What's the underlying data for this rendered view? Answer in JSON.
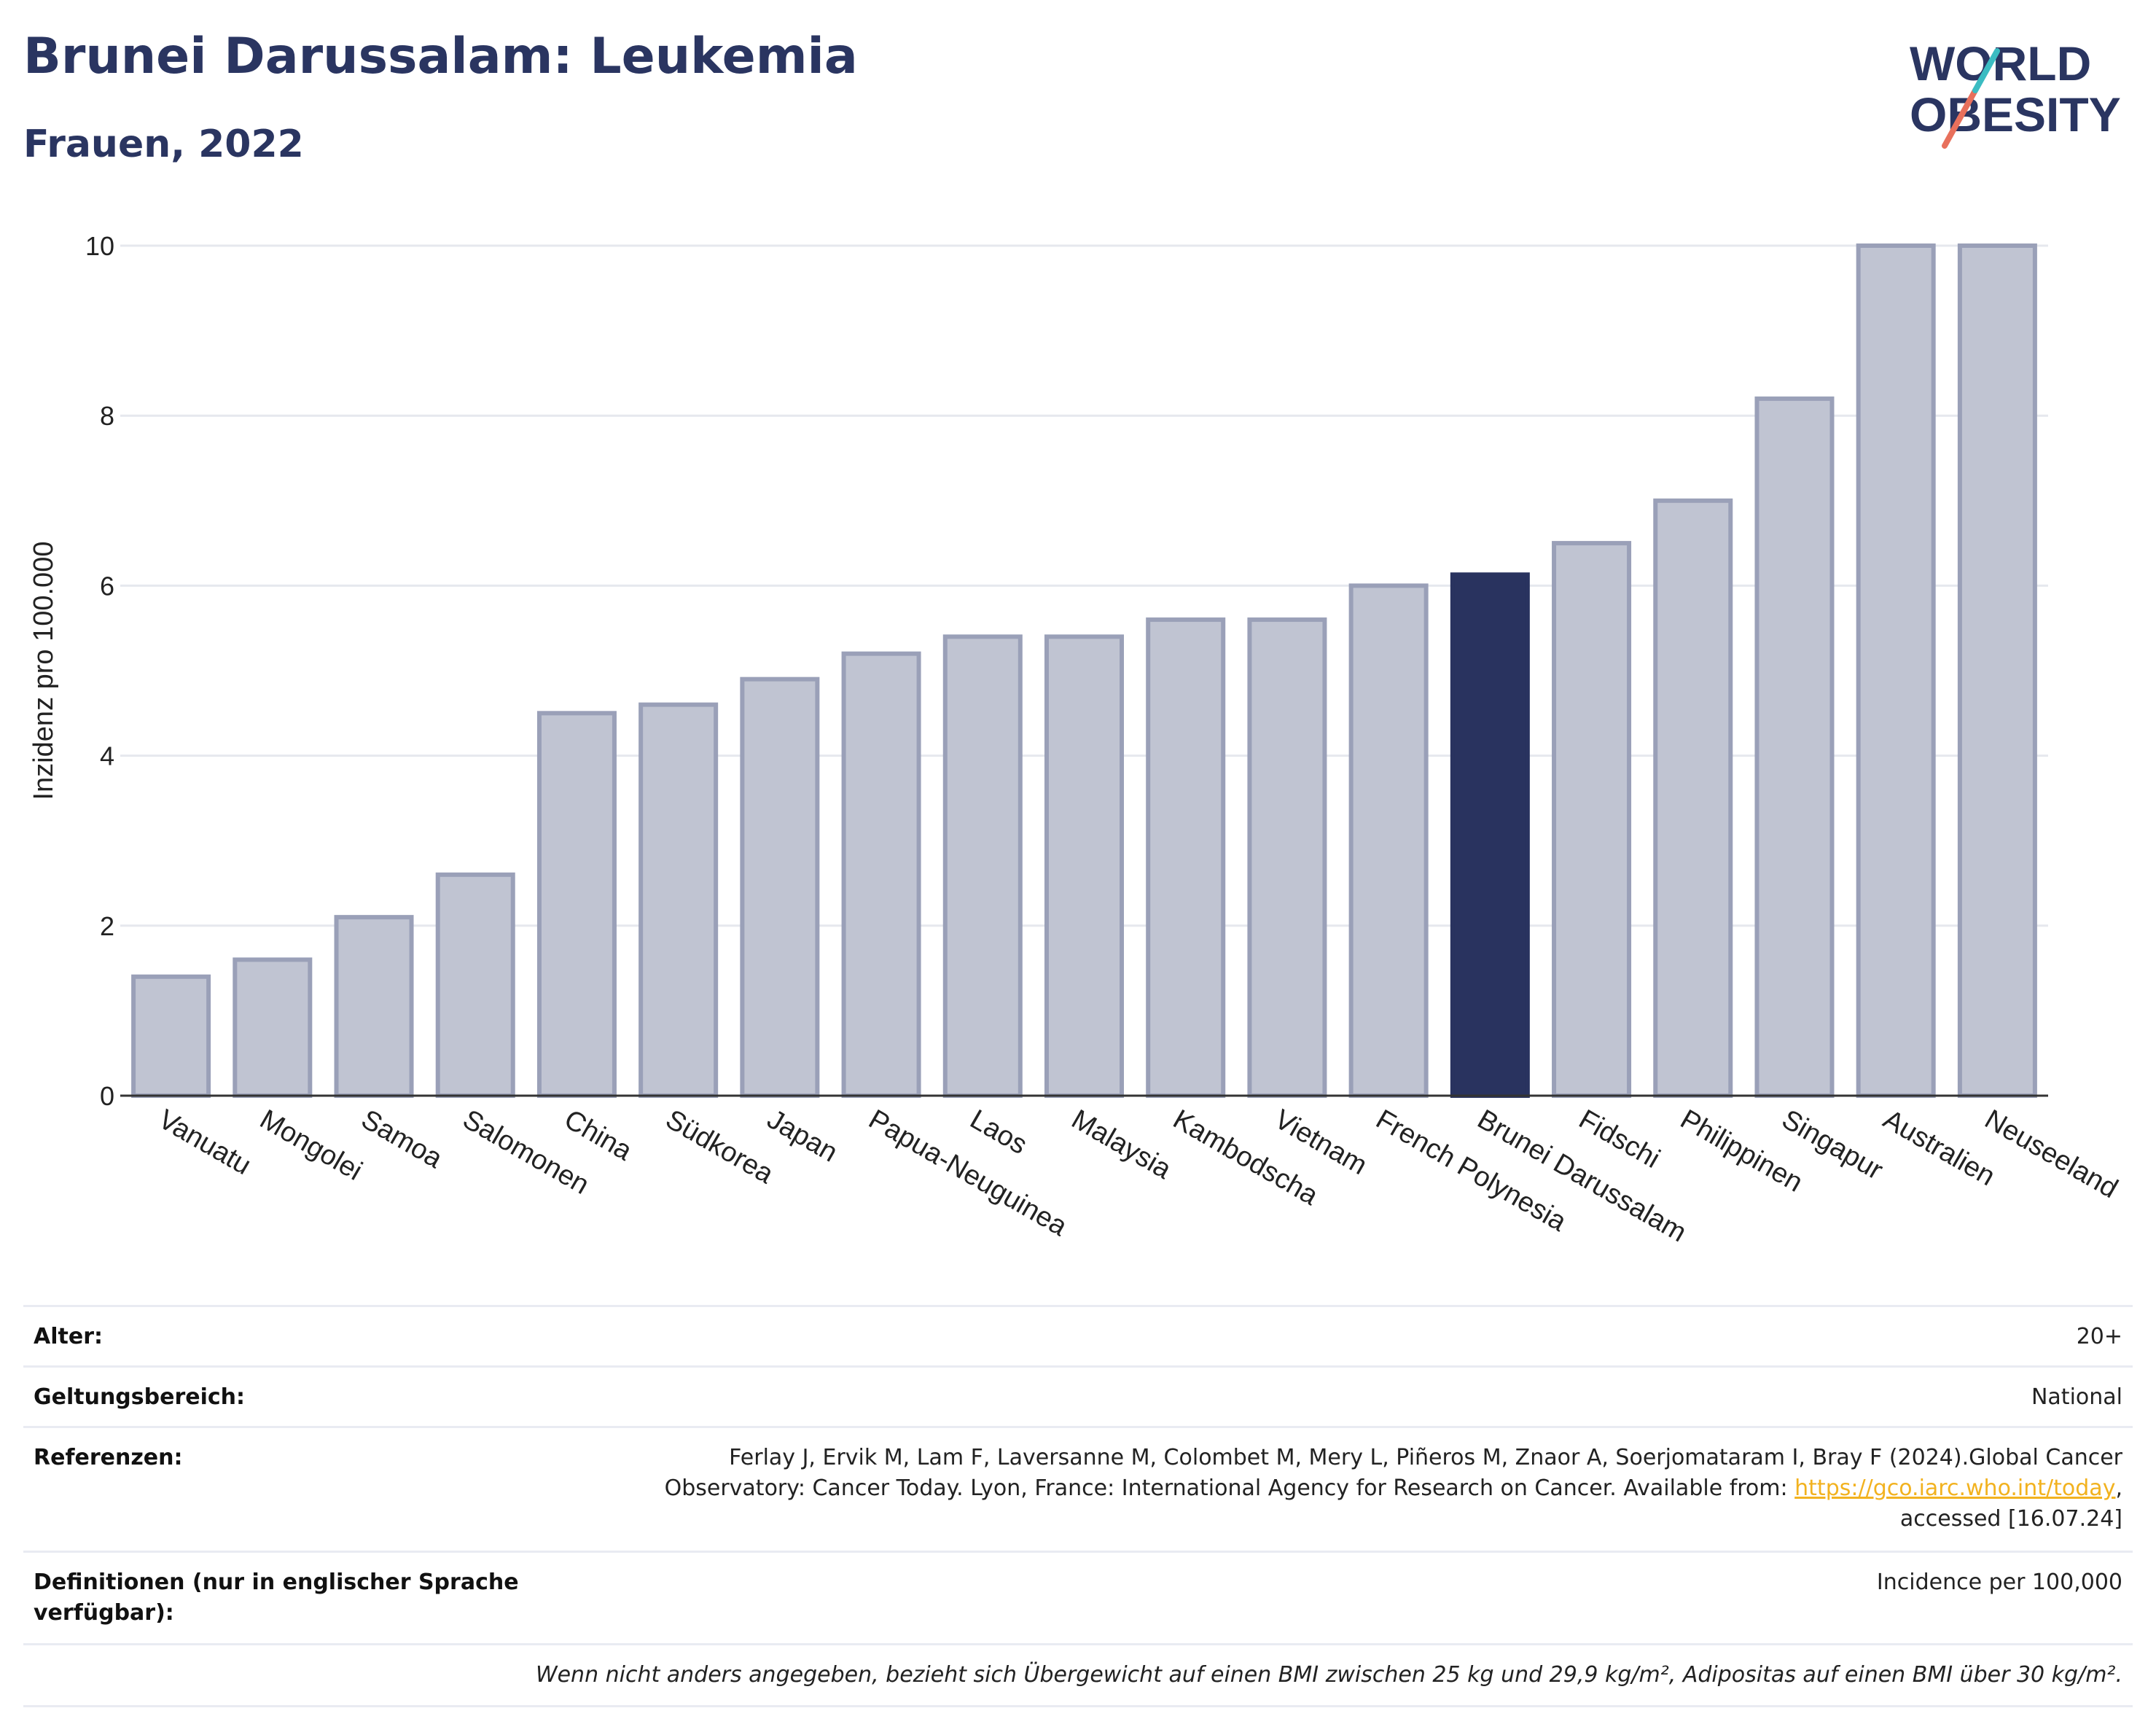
{
  "header": {
    "title": "Brunei Darussalam: Leukemia",
    "subtitle": "Frauen, 2022",
    "logo_line1": "WORLD",
    "logo_line2": "OBESITY"
  },
  "colors": {
    "title": "#2a3561",
    "bar": "#c0c4d2",
    "bar_outline": "#9aa0b8",
    "highlight": "#29335f",
    "grid": "#e6e8ee",
    "link": "#f2b21f",
    "logo_teal": "#3bbcc2",
    "logo_coral": "#e8705c"
  },
  "chart_data": {
    "type": "bar",
    "title": "Brunei Darussalam: Leukemia",
    "subtitle": "Frauen, 2022",
    "ylabel": "Inzidenz pro 100.000",
    "ylim": [
      0,
      10
    ],
    "yticks": [
      0,
      2,
      4,
      6,
      8,
      10
    ],
    "grid": true,
    "highlight": "Brunei Darussalam",
    "categories": [
      "Vanuatu",
      "Mongolei",
      "Samoa",
      "Salomonen",
      "China",
      "Südkorea",
      "Japan",
      "Papua-Neuguinea",
      "Laos",
      "Malaysia",
      "Kambodscha",
      "Vietnam",
      "French Polynesia",
      "Brunei Darussalam",
      "Fidschi",
      "Philippinen",
      "Singapur",
      "Australien",
      "Neuseeland"
    ],
    "values": [
      1.4,
      1.6,
      2.1,
      2.6,
      4.5,
      4.6,
      4.9,
      5.2,
      5.4,
      5.4,
      5.6,
      5.6,
      6.0,
      6.13,
      6.5,
      7.0,
      8.2,
      10.0,
      10.0
    ]
  },
  "meta": {
    "age_label": "Alter:",
    "age_value": "20+",
    "scope_label": "Geltungsbereich:",
    "scope_value": "National",
    "ref_label": "Referenzen:",
    "ref_line1": "Ferlay J, Ervik M, Lam F, Laversanne M, Colombet M, Mery L, Piñeros M, Znaor A, Soerjomataram I, Bray F (2024).Global Cancer",
    "ref_line2": "Observatory: Cancer Today. Lyon, France: International Agency for Research on Cancer. Available from: ",
    "ref_link": "https://gco.iarc.who.int/today",
    "ref_line2_end": ",",
    "ref_line3": "accessed [16.07.24]",
    "def_label_1": "Definitionen (nur in englischer Sprache",
    "def_label_2": "verfügbar):",
    "def_value": "Incidence per 100,000",
    "note": "Wenn nicht anders angegeben, bezieht sich Übergewicht auf einen BMI zwischen 25 kg und 29,9 kg/m², Adipositas auf einen BMI über 30 kg/m²."
  }
}
